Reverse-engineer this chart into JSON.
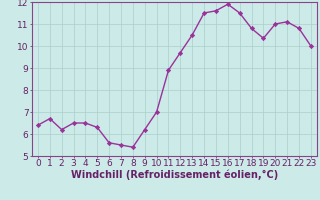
{
  "x": [
    0,
    1,
    2,
    3,
    4,
    5,
    6,
    7,
    8,
    9,
    10,
    11,
    12,
    13,
    14,
    15,
    16,
    17,
    18,
    19,
    20,
    21,
    22,
    23
  ],
  "y": [
    6.4,
    6.7,
    6.2,
    6.5,
    6.5,
    6.3,
    5.6,
    5.5,
    5.4,
    6.2,
    7.0,
    8.9,
    9.7,
    10.5,
    11.5,
    11.6,
    11.9,
    11.5,
    10.8,
    10.35,
    11.0,
    11.1,
    10.8,
    10.0
  ],
  "line_color": "#993399",
  "marker": "D",
  "marker_size": 2.2,
  "bg_color": "#cceae8",
  "grid_color": "#aacfcc",
  "xlabel": "Windchill (Refroidissement éolien,°C)",
  "ylim": [
    5,
    12
  ],
  "xlim_min": -0.5,
  "xlim_max": 23.5,
  "yticks": [
    5,
    6,
    7,
    8,
    9,
    10,
    11,
    12
  ],
  "xticks": [
    0,
    1,
    2,
    3,
    4,
    5,
    6,
    7,
    8,
    9,
    10,
    11,
    12,
    13,
    14,
    15,
    16,
    17,
    18,
    19,
    20,
    21,
    22,
    23
  ],
  "tick_fontsize": 6.5,
  "xlabel_fontsize": 7,
  "spine_color": "#884488",
  "axis_label_color": "#662266",
  "linewidth": 1.0
}
